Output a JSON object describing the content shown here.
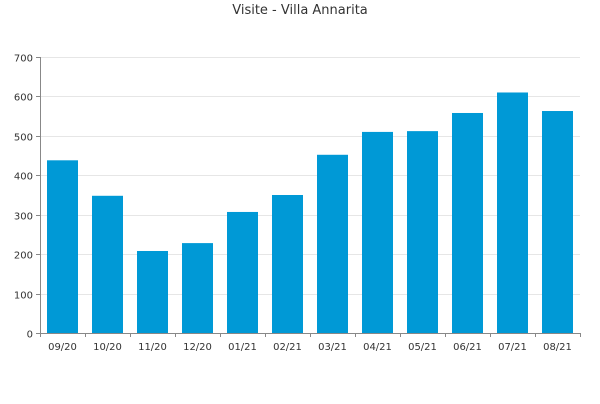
{
  "chart_data": {
    "type": "bar",
    "title": "Visite - Villa Annarita",
    "xlabel": "",
    "ylabel": "",
    "categories": [
      "09/20",
      "10/20",
      "11/20",
      "12/20",
      "01/21",
      "02/21",
      "03/21",
      "04/21",
      "05/21",
      "06/21",
      "07/21",
      "08/21"
    ],
    "series": [
      {
        "values": [
          438,
          348,
          208,
          228,
          307,
          350,
          452,
          510,
          512,
          558,
          610,
          563
        ]
      }
    ],
    "ylim": [
      0,
      700
    ],
    "yticks": [
      0,
      100,
      200,
      300,
      400,
      500,
      600,
      700
    ],
    "grid": true,
    "legend": "none",
    "colors": {
      "bar": "#0099d6",
      "grid": "#e6e6e6",
      "axis": "#888888",
      "text": "#333333"
    }
  }
}
